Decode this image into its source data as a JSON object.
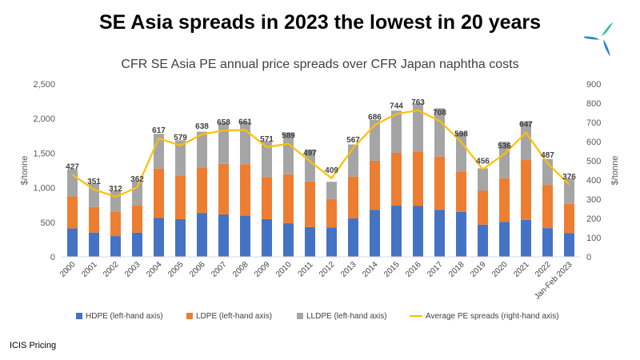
{
  "headline": "SE Asia spreads in 2023 the lowest in 20 years",
  "source": "ICIS Pricing",
  "logo_icon": "icis-logo-icon",
  "colors": {
    "hdpe": "#4472C4",
    "ldpe": "#ED7D31",
    "lldpe": "#A5A5A5",
    "average": "#FFC000",
    "logo_teal": "#3BBFAD",
    "logo_blue": "#2E86C1"
  },
  "chart_data": {
    "type": "bar",
    "title": "CFR SE Asia PE annual price spreads over CFR Japan naphtha costs",
    "ylabel": "$/tonne",
    "y2label": "$/tonne",
    "ylim": [
      0,
      2500
    ],
    "y2lim": [
      0,
      900
    ],
    "yticks": [
      "0",
      "500",
      "1,000",
      "1,500",
      "2,000",
      "2,500"
    ],
    "y2ticks": [
      "0",
      "100",
      "200",
      "300",
      "400",
      "500",
      "600",
      "700",
      "800",
      "900"
    ],
    "grid": false,
    "legend_position": "bottom",
    "categories": [
      "2000",
      "2001",
      "2002",
      "2003",
      "2004",
      "2005",
      "2006",
      "2007",
      "2008",
      "2009",
      "2010",
      "2011",
      "2012",
      "2013",
      "2014",
      "2015",
      "2016",
      "2017",
      "2018",
      "2019",
      "2020",
      "2021",
      "2022",
      "Jan-Feb 2023"
    ],
    "series": [
      {
        "name": "HDPE (left-hand axis)",
        "kind": "bar",
        "axis": "left",
        "values": [
          410,
          350,
          300,
          350,
          565,
          545,
          635,
          615,
          595,
          545,
          485,
          430,
          425,
          555,
          680,
          740,
          735,
          680,
          650,
          465,
          505,
          535,
          415,
          345
        ]
      },
      {
        "name": "LDPE (left-hand axis)",
        "kind": "bar",
        "axis": "left",
        "values": [
          465,
          370,
          355,
          395,
          710,
          625,
          650,
          730,
          745,
          610,
          710,
          660,
          410,
          605,
          710,
          765,
          790,
          770,
          585,
          490,
          630,
          865,
          625,
          420
        ]
      },
      {
        "name": "LLDPE (left-hand axis)",
        "kind": "bar",
        "axis": "left",
        "values": [
          390,
          340,
          295,
          355,
          505,
          515,
          525,
          595,
          615,
          520,
          600,
          465,
          250,
          465,
          590,
          610,
          695,
          700,
          565,
          325,
          530,
          560,
          375,
          370
        ]
      },
      {
        "name": "Average PE spreads (right-hand axis)",
        "kind": "line",
        "axis": "right",
        "values": [
          427,
          351,
          312,
          362,
          617,
          579,
          638,
          658,
          661,
          571,
          589,
          497,
          409,
          567,
          686,
          744,
          763,
          708,
          598,
          456,
          536,
          647,
          487,
          376
        ],
        "labels": [
          "427",
          "351",
          "312",
          "362",
          "617",
          "579",
          "638",
          "658",
          "661",
          "571",
          "589",
          "497",
          "409",
          "567",
          "686",
          "744",
          "763",
          "708",
          "598",
          "456",
          "536",
          "647",
          "487",
          "376"
        ]
      }
    ]
  }
}
